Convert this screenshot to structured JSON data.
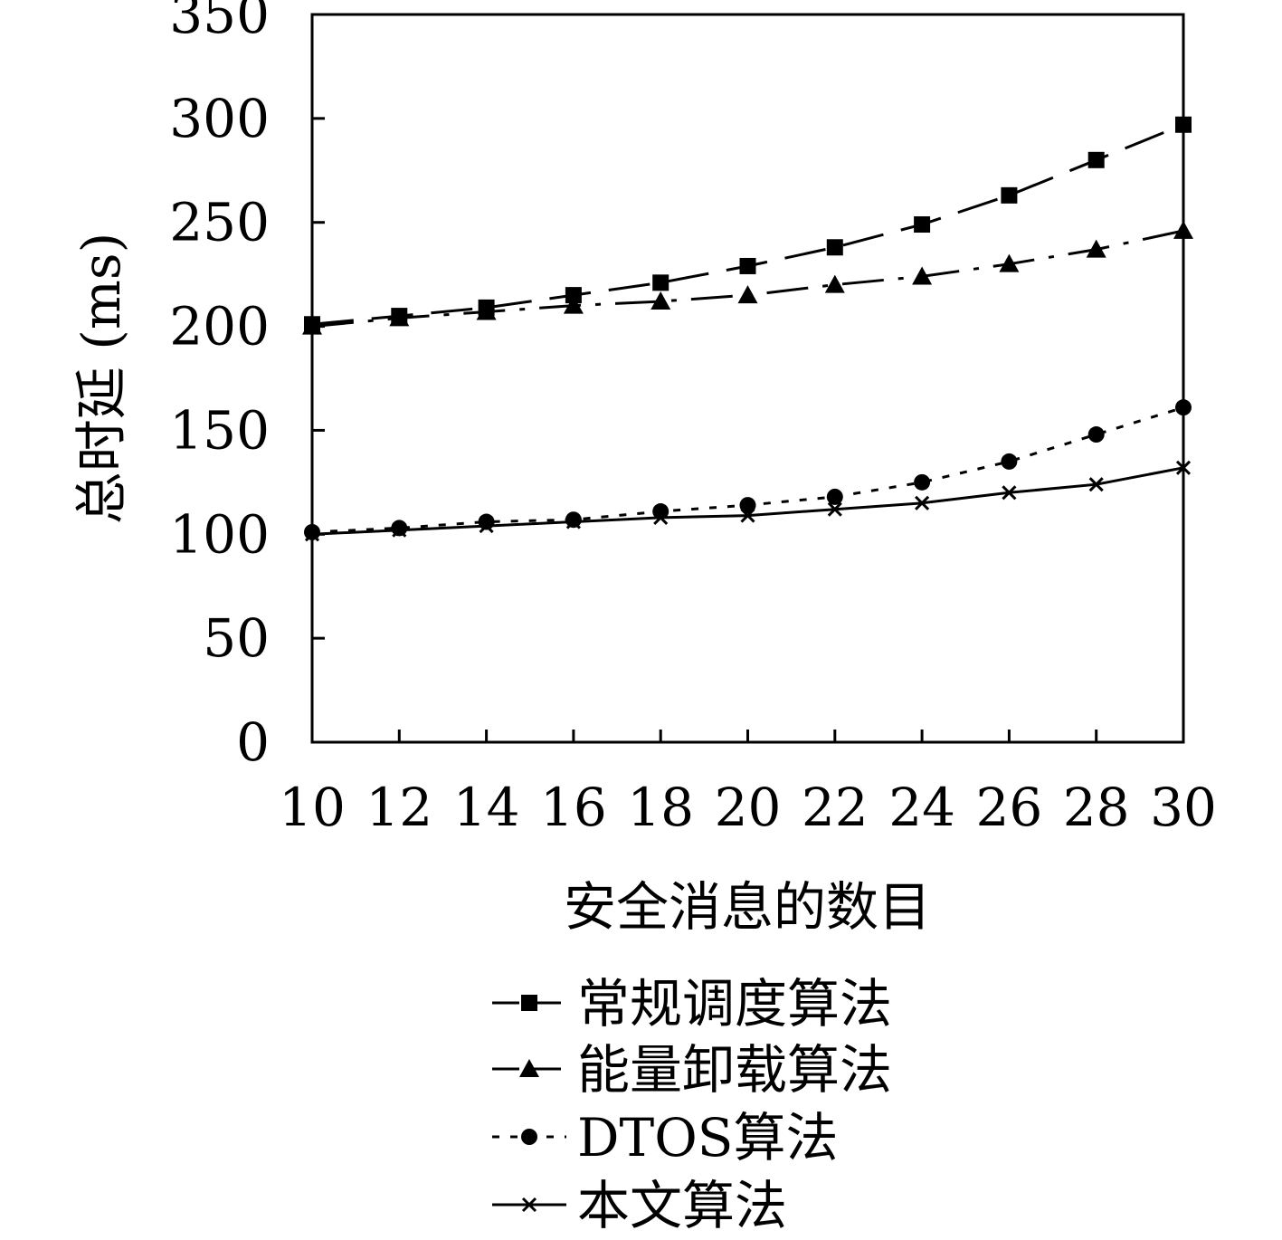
{
  "chart_data": {
    "type": "line",
    "xlabel": "安全消息的数目",
    "ylabel": "总时延 (ms)",
    "x": [
      10,
      12,
      14,
      16,
      18,
      20,
      22,
      24,
      26,
      28,
      30
    ],
    "xticks": [
      "10",
      "12",
      "14",
      "16",
      "18",
      "20",
      "22",
      "24",
      "26",
      "28",
      "30"
    ],
    "xlim": [
      10,
      30
    ],
    "yticks": [
      "0",
      "50",
      "100",
      "150",
      "200",
      "250",
      "300",
      "350"
    ],
    "ylim": [
      0,
      350
    ],
    "grid": false,
    "legend_position": "bottom",
    "series": [
      {
        "name": "常规调度算法",
        "marker": "square",
        "line_style": "dashed",
        "values": [
          201,
          205,
          209,
          215,
          221,
          229,
          238,
          249,
          263,
          280,
          297
        ]
      },
      {
        "name": "能量卸载算法",
        "marker": "triangle",
        "line_style": "dash-dot",
        "values": [
          200,
          204,
          207,
          210,
          212,
          215,
          220,
          224,
          230,
          237,
          246
        ]
      },
      {
        "name": "DTOS算法",
        "marker": "circle",
        "line_style": "dotted",
        "values": [
          101,
          103,
          106,
          107,
          111,
          114,
          118,
          125,
          135,
          148,
          161
        ]
      },
      {
        "name": "本文算法",
        "marker": "x",
        "line_style": "solid",
        "values": [
          100,
          102,
          104,
          106,
          108,
          109,
          112,
          115,
          120,
          124,
          132
        ]
      }
    ]
  }
}
